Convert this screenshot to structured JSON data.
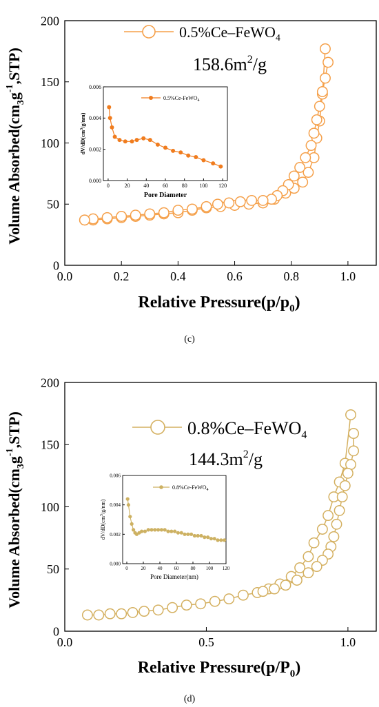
{
  "panels": [
    {
      "id": "c",
      "caption": "(c)",
      "ylabel_main": "Volume Absorbed(cm",
      "ylabel_sub": "3",
      "ylabel_mid": "g",
      "ylabel_sup": "-1",
      "ylabel_end": ",STP)",
      "xlabel_main": "Relative Pressure(p/p",
      "xlabel_sub": "0",
      "xlabel_end": ")",
      "legend_main": "0.5%Ce–FeWO",
      "legend_sub": "4",
      "area_main": "158.6m",
      "area_sup": "2",
      "area_end": "/g",
      "color": "#f5a04a",
      "inset": {
        "legend_main": "0.5%Ce-FeWO",
        "legend_sub": "4",
        "xlabel": "Pore Diameter",
        "ylabel_main": "dV/dD(cm",
        "ylabel_sup": "3",
        "ylabel_end": "/g/nm)",
        "color": "#f07c1e"
      }
    },
    {
      "id": "d",
      "caption": "(d)",
      "ylabel_main": "Volume Absorbed(cm",
      "ylabel_sub": "3",
      "ylabel_mid": "g",
      "ylabel_sup": "-1",
      "ylabel_end": ",STP)",
      "xlabel_main": "Relative Pressure(p/P",
      "xlabel_sub": "0",
      "xlabel_end": ")",
      "legend_main": "0.8%Ce–FeWO",
      "legend_sub": "4",
      "area_main": "144.3m",
      "area_sup": "2",
      "area_end": "/g",
      "color": "#d4b060",
      "inset": {
        "legend_main": "0.8%Ce-FeWO",
        "legend_sub": "4",
        "xlabel": "Pore Diameter(nm)",
        "ylabel_main": "dV/dD(cm",
        "ylabel_sup": "3",
        "ylabel_end": "/g/nm)",
        "color": "#cdb162"
      }
    }
  ],
  "chart_data": [
    {
      "type": "line",
      "panel": "c",
      "xlabel": "Relative Pressure(p/p0)",
      "ylabel": "Volume Absorbed(cm3g-1,STP)",
      "xlim": [
        0.0,
        1.1
      ],
      "ylim": [
        0,
        200
      ],
      "xticks": [
        0.0,
        0.2,
        0.4,
        0.6,
        0.8,
        1.0
      ],
      "yticks": [
        0,
        50,
        100,
        150,
        200
      ],
      "xtick_labels": [
        "0.0",
        "0.2",
        "0.4",
        "0.6",
        "0.8",
        "1.0"
      ],
      "ytick_labels": [
        "0",
        "50",
        "100",
        "150",
        "200"
      ],
      "legend_position": "top",
      "series": [
        {
          "name": "0.5%Ce–FeWO4",
          "branch": "adsorption",
          "x": [
            0.07,
            0.1,
            0.15,
            0.2,
            0.25,
            0.3,
            0.35,
            0.4,
            0.45,
            0.5,
            0.55,
            0.6,
            0.65,
            0.7,
            0.74,
            0.78,
            0.81,
            0.84,
            0.86,
            0.88,
            0.89,
            0.9,
            0.91,
            0.92
          ],
          "y": [
            37,
            37,
            38,
            39,
            40,
            41,
            42,
            43,
            45,
            47,
            48,
            49,
            50,
            51,
            54,
            59,
            63,
            68,
            76,
            88,
            104,
            118,
            140,
            177
          ]
        },
        {
          "name": "0.5%Ce–FeWO4",
          "branch": "desorption",
          "x": [
            0.93,
            0.92,
            0.91,
            0.9,
            0.89,
            0.88,
            0.87,
            0.85,
            0.83,
            0.81,
            0.79,
            0.77,
            0.75,
            0.73,
            0.7,
            0.66,
            0.62,
            0.58,
            0.54,
            0.5,
            0.45,
            0.4,
            0.35,
            0.3,
            0.25,
            0.2,
            0.15,
            0.1,
            0.07
          ],
          "y": [
            166,
            153,
            142,
            130,
            119,
            108,
            98,
            88,
            80,
            73,
            66,
            61,
            57,
            54,
            53,
            53,
            52,
            51,
            50,
            48,
            46,
            45,
            43,
            42,
            41,
            40,
            39,
            38,
            37
          ]
        }
      ],
      "label": "158.6m2/g"
    },
    {
      "type": "line",
      "panel": "c-inset",
      "xlabel": "Pore Diameter",
      "ylabel": "dV/dD(cm3/g/nm)",
      "xlim": [
        -5,
        125
      ],
      "ylim": [
        0.0,
        0.006
      ],
      "xticks": [
        0,
        20,
        40,
        60,
        80,
        100,
        120
      ],
      "yticks": [
        0.0,
        0.002,
        0.004,
        0.006
      ],
      "xtick_labels": [
        "0",
        "20",
        "40",
        "60",
        "80",
        "100",
        "120"
      ],
      "ytick_labels": [
        "0.000",
        "0.002",
        "0.004",
        "0.006"
      ],
      "legend_position": "top-right",
      "series": [
        {
          "name": "0.5%Ce-FeWO4",
          "x": [
            1,
            2,
            4,
            7,
            12,
            18,
            25,
            30,
            37,
            44,
            52,
            60,
            68,
            76,
            84,
            92,
            100,
            110,
            118
          ],
          "y": [
            0.0047,
            0.004,
            0.0034,
            0.0028,
            0.0026,
            0.0025,
            0.0025,
            0.0026,
            0.0027,
            0.0026,
            0.0023,
            0.0021,
            0.0019,
            0.0018,
            0.0016,
            0.0015,
            0.0013,
            0.0011,
            0.0009
          ]
        }
      ]
    },
    {
      "type": "line",
      "panel": "d",
      "xlabel": "Relative Pressure(p/P0)",
      "ylabel": "Volume Absorbed(cm3g-1,STP)",
      "xlim": [
        0.0,
        1.1
      ],
      "ylim": [
        0,
        200
      ],
      "xticks": [
        0.0,
        0.5,
        1.0
      ],
      "yticks": [
        0,
        50,
        100,
        150,
        200
      ],
      "xtick_labels": [
        "0.0",
        "0.5",
        "1.0"
      ],
      "ytick_labels": [
        "0",
        "50",
        "100",
        "150",
        "200"
      ],
      "legend_position": "top",
      "series": [
        {
          "name": "0.8%Ce–FeWO4",
          "branch": "adsorption",
          "x": [
            0.08,
            0.12,
            0.16,
            0.2,
            0.24,
            0.28,
            0.33,
            0.38,
            0.43,
            0.48,
            0.53,
            0.58,
            0.63,
            0.68,
            0.72,
            0.76,
            0.8,
            0.83,
            0.86,
            0.88,
            0.91,
            0.93,
            0.95,
            0.97,
            0.99,
            1.01
          ],
          "y": [
            13,
            13,
            14,
            14,
            15,
            16,
            17,
            19,
            21,
            22,
            24,
            26,
            29,
            31,
            34,
            38,
            44,
            51,
            60,
            71,
            82,
            93,
            108,
            120,
            135,
            174
          ]
        },
        {
          "name": "0.8%Ce–FeWO4",
          "branch": "desorption",
          "x": [
            1.02,
            1.02,
            1.01,
            1.0,
            0.99,
            0.98,
            0.97,
            0.96,
            0.95,
            0.94,
            0.93,
            0.91,
            0.89,
            0.86,
            0.82,
            0.78,
            0.74,
            0.7
          ],
          "y": [
            159,
            145,
            134,
            127,
            117,
            108,
            97,
            86,
            76,
            68,
            62,
            57,
            52,
            47,
            41,
            37,
            34,
            32
          ]
        }
      ],
      "label": "144.3m2/g"
    },
    {
      "type": "line",
      "panel": "d-inset",
      "xlabel": "Pore Diameter(nm)",
      "ylabel": "dV/dD(cm3/g/nm)",
      "xlim": [
        -5,
        120
      ],
      "ylim": [
        0.0,
        0.006
      ],
      "xticks": [
        0,
        20,
        40,
        60,
        80,
        100,
        120
      ],
      "yticks": [
        0.0,
        0.002,
        0.004,
        0.006
      ],
      "xtick_labels": [
        "0",
        "20",
        "40",
        "60",
        "80",
        "100",
        "120"
      ],
      "ytick_labels": [
        "0.000",
        "0.002",
        "0.004",
        "0.006"
      ],
      "legend_position": "top-right",
      "series": [
        {
          "name": "0.8%Ce-FeWO4",
          "x": [
            1,
            2,
            4,
            6,
            8,
            10,
            12,
            15,
            18,
            22,
            26,
            30,
            34,
            38,
            42,
            46,
            50,
            54,
            58,
            62,
            66,
            70,
            74,
            78,
            82,
            86,
            90,
            94,
            98,
            102,
            106,
            110,
            114,
            118
          ],
          "y": [
            0.0044,
            0.004,
            0.0032,
            0.0027,
            0.0023,
            0.0021,
            0.002,
            0.0021,
            0.0022,
            0.0022,
            0.0023,
            0.0023,
            0.0023,
            0.0023,
            0.0023,
            0.0023,
            0.0022,
            0.0022,
            0.0022,
            0.0021,
            0.0021,
            0.002,
            0.002,
            0.002,
            0.0019,
            0.0019,
            0.0019,
            0.0018,
            0.0018,
            0.0017,
            0.0017,
            0.0016,
            0.0016,
            0.0016
          ]
        }
      ]
    }
  ]
}
